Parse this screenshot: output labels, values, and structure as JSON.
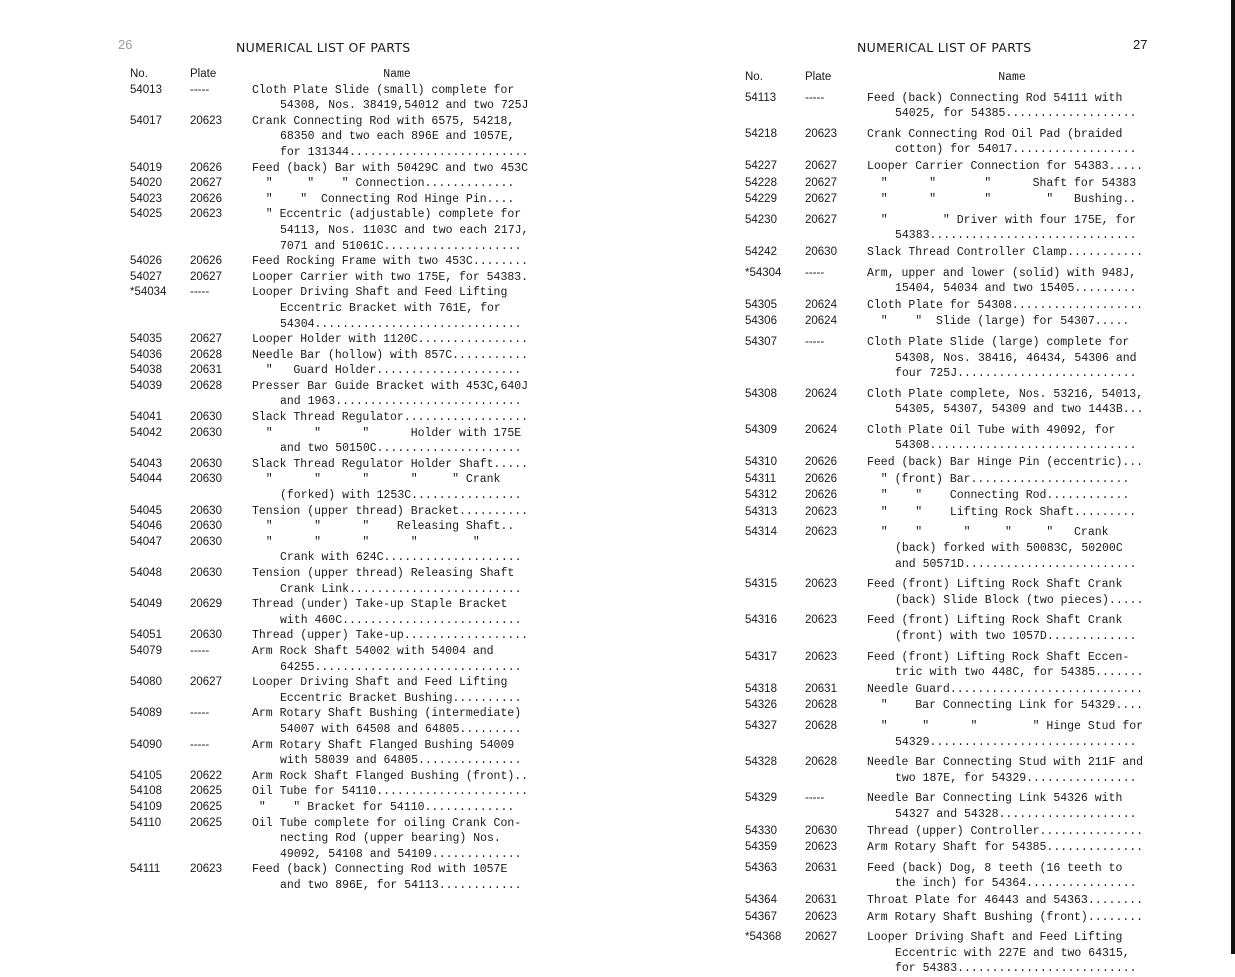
{
  "left_page": {
    "page_number": "26",
    "title": "NUMERICAL LIST OF PARTS",
    "headers": {
      "no": "No.",
      "plate": "Plate",
      "name": "Name"
    },
    "rows": [
      {
        "no": "54013",
        "plate": "-----",
        "lines": [
          "Cloth Plate Slide (small) complete for",
          "54308, Nos. 38419,54012 and two 725J"
        ]
      },
      {
        "no": "54017",
        "plate": "20623",
        "lines": [
          "Crank Connecting Rod with 6575, 54218,",
          "68350 and two each 896E and 1057E,",
          "for 131344.........................."
        ]
      },
      {
        "no": "54019",
        "plate": "20626",
        "lines": [
          "Feed (back) Bar with 50429C and two 453C"
        ]
      },
      {
        "no": "54020",
        "plate": "20627",
        "lines": [
          "  \"     \"    \" Connection............."
        ]
      },
      {
        "no": "54023",
        "plate": "20626",
        "lines": [
          "  \"    \"  Connecting Rod Hinge Pin...."
        ]
      },
      {
        "no": "54025",
        "plate": "20623",
        "lines": [
          "  \" Eccentric (adjustable) complete for",
          "54113, Nos. 1103C and two each 217J,",
          "7071 and 51061C...................."
        ]
      },
      {
        "no": "54026",
        "plate": "20626",
        "lines": [
          "Feed Rocking Frame with two 453C........"
        ]
      },
      {
        "no": "54027",
        "plate": "20627",
        "lines": [
          "Looper Carrier with two 175E, for 54383."
        ]
      },
      {
        "no": "*54034",
        "plate": "-----",
        "lines": [
          "Looper Driving Shaft and Feed Lifting",
          "Eccentric Bracket with 761E, for",
          "54304.............................."
        ]
      },
      {
        "no": "54035",
        "plate": "20627",
        "lines": [
          "Looper Holder with 1120C................"
        ]
      },
      {
        "no": "54036",
        "plate": "20628",
        "lines": [
          "Needle Bar (hollow) with 857C..........."
        ]
      },
      {
        "no": "54038",
        "plate": "20631",
        "lines": [
          "  \"   Guard Holder....................."
        ]
      },
      {
        "no": "54039",
        "plate": "20628",
        "lines": [
          "Presser Bar Guide Bracket with 453C,640J",
          "and 1963..........................."
        ]
      },
      {
        "no": "54041",
        "plate": "20630",
        "lines": [
          "Slack Thread Regulator.................."
        ]
      },
      {
        "no": "54042",
        "plate": "20630",
        "lines": [
          "  \"      \"      \"      Holder with 175E",
          "and two 50150C....................."
        ]
      },
      {
        "no": "54043",
        "plate": "20630",
        "lines": [
          "Slack Thread Regulator Holder Shaft....."
        ]
      },
      {
        "no": "54044",
        "plate": "20630",
        "lines": [
          "  \"      \"      \"      \"     \" Crank",
          "(forked) with 1253C................"
        ]
      },
      {
        "no": "54045",
        "plate": "20630",
        "lines": [
          "Tension (upper thread) Bracket.........."
        ]
      },
      {
        "no": "54046",
        "plate": "20630",
        "lines": [
          "  \"      \"      \"    Releasing Shaft.."
        ]
      },
      {
        "no": "54047",
        "plate": "20630",
        "lines": [
          "  \"      \"      \"      \"        \"",
          "Crank with 624C...................."
        ]
      },
      {
        "no": "54048",
        "plate": "20630",
        "lines": [
          "Tension (upper thread) Releasing Shaft",
          "Crank Link........................."
        ]
      },
      {
        "no": "54049",
        "plate": "20629",
        "lines": [
          "Thread (under) Take-up Staple Bracket",
          "with 460C.........................."
        ]
      },
      {
        "no": "54051",
        "plate": "20630",
        "lines": [
          "Thread (upper) Take-up.................."
        ]
      },
      {
        "no": "54079",
        "plate": "-----",
        "lines": [
          "Arm Rock Shaft 54002 with 54004 and",
          "64255.............................."
        ]
      },
      {
        "no": "54080",
        "plate": "20627",
        "lines": [
          "Looper Driving Shaft and Feed Lifting",
          "Eccentric Bracket Bushing.........."
        ]
      },
      {
        "no": "54089",
        "plate": "-----",
        "lines": [
          "Arm Rotary Shaft Bushing (intermediate)",
          "54007 with 64508 and 64805........."
        ]
      },
      {
        "no": "54090",
        "plate": "-----",
        "lines": [
          "Arm Rotary Shaft Flanged Bushing 54009",
          "with 58039 and 64805..............."
        ]
      },
      {
        "no": "54105",
        "plate": "20622",
        "lines": [
          "Arm Rock Shaft Flanged Bushing (front).."
        ]
      },
      {
        "no": "54108",
        "plate": "20625",
        "lines": [
          "Oil Tube for 54110......................"
        ]
      },
      {
        "no": "54109",
        "plate": "20625",
        "lines": [
          " \"    \" Bracket for 54110............."
        ]
      },
      {
        "no": "54110",
        "plate": "20625",
        "lines": [
          "Oil Tube complete for oiling Crank Con-",
          "necting Rod (upper bearing) Nos.",
          "49092, 54108 and 54109............."
        ]
      },
      {
        "no": "54111",
        "plate": "20623",
        "lines": [
          "Feed (back) Connecting Rod with 1057E",
          "and two 896E, for 54113............"
        ]
      }
    ]
  },
  "right_page": {
    "page_number": "27",
    "title": "NUMERICAL LIST OF PARTS",
    "headers": {
      "no": "No.",
      "plate": "Plate",
      "name": "Name"
    },
    "rows": [
      {
        "no": "54113",
        "plate": "-----",
        "lines": [
          "Feed (back) Connecting Rod 54111 with",
          "54025, for 54385..................."
        ]
      },
      {
        "no": "54218",
        "plate": "20623",
        "lines": [
          "Crank Connecting Rod Oil Pad (braided",
          "cotton) for 54017.................."
        ]
      },
      {
        "no": "54227",
        "plate": "20627",
        "lines": [
          "Looper Carrier Connection for 54383....."
        ]
      },
      {
        "no": "54228",
        "plate": "20627",
        "lines": [
          "  \"      \"       \"      Shaft for 54383"
        ]
      },
      {
        "no": "54229",
        "plate": "20627",
        "lines": [
          "  \"      \"       \"        \"   Bushing.."
        ]
      },
      {
        "no": "54230",
        "plate": "20627",
        "lines": [
          "  \"        \" Driver with four 175E, for",
          "54383.............................."
        ]
      },
      {
        "no": "54242",
        "plate": "20630",
        "lines": [
          "Slack Thread Controller Clamp..........."
        ]
      },
      {
        "no": "*54304",
        "plate": "-----",
        "lines": [
          "Arm, upper and lower (solid) with 948J,",
          "15404, 54034 and two 15405........."
        ]
      },
      {
        "no": "54305",
        "plate": "20624",
        "lines": [
          "Cloth Plate for 54308..................."
        ]
      },
      {
        "no": "54306",
        "plate": "20624",
        "lines": [
          "  \"    \"  Slide (large) for 54307....."
        ]
      },
      {
        "no": "54307",
        "plate": "-----",
        "lines": [
          "Cloth Plate Slide (large) complete for",
          "54308, Nos. 38416, 46434, 54306 and",
          "four 725J.........................."
        ]
      },
      {
        "no": "54308",
        "plate": "20624",
        "lines": [
          "Cloth Plate complete, Nos. 53216, 54013,",
          "54305, 54307, 54309 and two 1443B..."
        ]
      },
      {
        "no": "54309",
        "plate": "20624",
        "lines": [
          "Cloth Plate Oil Tube with 49092, for",
          "54308.............................."
        ]
      },
      {
        "no": "54310",
        "plate": "20626",
        "lines": [
          "Feed (back) Bar Hinge Pin (eccentric)..."
        ]
      },
      {
        "no": "54311",
        "plate": "20626",
        "lines": [
          "  \" (front) Bar......................."
        ]
      },
      {
        "no": "54312",
        "plate": "20626",
        "lines": [
          "  \"    \"    Connecting Rod............"
        ]
      },
      {
        "no": "54313",
        "plate": "20623",
        "lines": [
          "  \"    \"    Lifting Rock Shaft........."
        ]
      },
      {
        "no": "54314",
        "plate": "20623",
        "lines": [
          "  \"    \"      \"     \"     \"   Crank",
          "(back) forked with 50083C, 50200C",
          "and 50571D........................."
        ]
      },
      {
        "no": "54315",
        "plate": "20623",
        "lines": [
          "Feed (front) Lifting Rock Shaft Crank",
          "(back) Slide Block (two pieces)....."
        ]
      },
      {
        "no": "54316",
        "plate": "20623",
        "lines": [
          "Feed (front) Lifting Rock Shaft Crank",
          "(front) with two 1057D............."
        ]
      },
      {
        "no": "54317",
        "plate": "20623",
        "lines": [
          "Feed (front) Lifting Rock Shaft Eccen-",
          "tric with two 448C, for 54385......."
        ]
      },
      {
        "no": "54318",
        "plate": "20631",
        "lines": [
          "Needle Guard............................"
        ]
      },
      {
        "no": "54326",
        "plate": "20628",
        "lines": [
          "  \"    Bar Connecting Link for 54329...."
        ]
      },
      {
        "no": "54327",
        "plate": "20628",
        "lines": [
          "  \"     \"      \"        \" Hinge Stud for",
          "54329.............................."
        ]
      },
      {
        "no": "54328",
        "plate": "20628",
        "lines": [
          "Needle Bar Connecting Stud with 211F and",
          "two 187E, for 54329................"
        ]
      },
      {
        "no": "54329",
        "plate": "-----",
        "lines": [
          "Needle Bar Connecting Link 54326 with",
          "54327 and 54328...................."
        ]
      },
      {
        "no": "54330",
        "plate": "20630",
        "lines": [
          "Thread (upper) Controller..............."
        ]
      },
      {
        "no": "54359",
        "plate": "20623",
        "lines": [
          "Arm Rotary Shaft for 54385.............."
        ]
      },
      {
        "no": "54363",
        "plate": "20631",
        "lines": [
          "Feed (back) Dog, 8 teeth (16 teeth to",
          "the inch) for 54364................"
        ]
      },
      {
        "no": "54364",
        "plate": "20631",
        "lines": [
          "Throat Plate for 46443 and 54363........"
        ]
      },
      {
        "no": "54367",
        "plate": "20623",
        "lines": [
          "Arm Rotary Shaft Bushing (front)........"
        ]
      },
      {
        "no": "*54368",
        "plate": "20627",
        "lines": [
          "Looper Driving Shaft and Feed Lifting",
          "Eccentric with 227E and two 64315,",
          "for 54383.........................."
        ]
      }
    ]
  }
}
